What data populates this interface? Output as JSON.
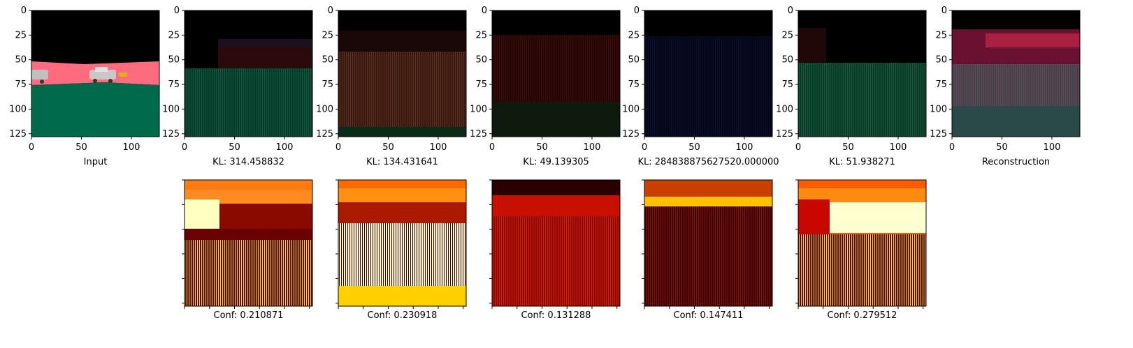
{
  "figure": {
    "top_row": [
      {
        "caption": "Input",
        "yticks": [
          "0",
          "25",
          "50",
          "75",
          "100",
          "125"
        ],
        "xticks": [
          "0",
          "50",
          "100"
        ]
      },
      {
        "caption": "KL: 314.458832",
        "yticks": [
          "0",
          "25",
          "50",
          "75",
          "100",
          "125"
        ],
        "xticks": [
          "0",
          "50",
          "100"
        ]
      },
      {
        "caption": "KL: 134.431641",
        "yticks": [
          "0",
          "25",
          "50",
          "75",
          "100",
          "125"
        ],
        "xticks": [
          "0",
          "50",
          "100"
        ]
      },
      {
        "caption": "KL: 49.139305",
        "yticks": [
          "0",
          "25",
          "50",
          "75",
          "100",
          "125"
        ],
        "xticks": [
          "0",
          "50",
          "100"
        ]
      },
      {
        "caption": "KL: 284838875627520.000000",
        "yticks": [
          "0",
          "25",
          "50",
          "75",
          "100",
          "125"
        ],
        "xticks": [
          "0",
          "50",
          "100"
        ]
      },
      {
        "caption": "KL: 51.938271",
        "yticks": [
          "0",
          "25",
          "50",
          "75",
          "100",
          "125"
        ],
        "xticks": [
          "0",
          "50",
          "100"
        ]
      },
      {
        "caption": "Reconstruction",
        "yticks": [
          "0",
          "25",
          "50",
          "75",
          "100",
          "125"
        ],
        "xticks": [
          "0",
          "50",
          "100"
        ]
      }
    ],
    "bottom_row": [
      {
        "caption": "Conf: 0.210871"
      },
      {
        "caption": "Conf: 0.230918"
      },
      {
        "caption": "Conf: 0.131288"
      },
      {
        "caption": "Conf: 0.147411"
      },
      {
        "caption": "Conf: 0.279512"
      }
    ]
  },
  "colors": {
    "road_pink": "#ff6b7e",
    "grass_green": "#006a4d",
    "sky_black": "#000000",
    "heat_dark": "#5a0000",
    "heat_red": "#c81000",
    "heat_orange": "#ff6a00",
    "heat_yellow": "#ffee00"
  }
}
